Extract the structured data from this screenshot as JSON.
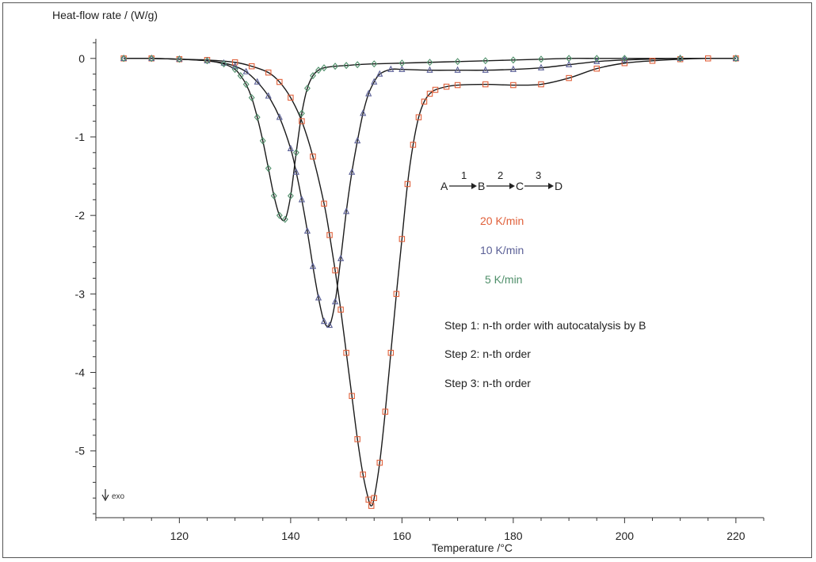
{
  "chart_data": {
    "type": "line",
    "title": "",
    "ylabel": "Heat-flow rate / (W/g)",
    "xlabel": "Temperature /°C",
    "xlim": [
      105,
      225
    ],
    "ylim": [
      -5.85,
      0.25
    ],
    "xticks": [
      120,
      140,
      160,
      180,
      200,
      220
    ],
    "yticks": [
      0,
      -1,
      -2,
      -3,
      -4,
      -5
    ],
    "exo_label": "exo",
    "colors": {
      "20": "#e0603a",
      "10": "#5a5f96",
      "5": "#4f8f6a",
      "fit": "#1a1a1a",
      "axis": "#333333"
    },
    "series": [
      {
        "name": "20 K/min",
        "marker": "square",
        "x": [
          110,
          115,
          120,
          125,
          130,
          133,
          136,
          138,
          140,
          142,
          144,
          146,
          147,
          148,
          149,
          150,
          151,
          152,
          153,
          154,
          154.5,
          155,
          156,
          157,
          158,
          159,
          160,
          161,
          162,
          163,
          164,
          165,
          166,
          168,
          170,
          175,
          180,
          185,
          190,
          195,
          200,
          205,
          210,
          215,
          220
        ],
        "y": [
          0,
          0,
          -0.01,
          -0.02,
          -0.05,
          -0.1,
          -0.18,
          -0.3,
          -0.5,
          -0.8,
          -1.25,
          -1.85,
          -2.25,
          -2.7,
          -3.2,
          -3.75,
          -4.3,
          -4.85,
          -5.3,
          -5.62,
          -5.7,
          -5.6,
          -5.15,
          -4.5,
          -3.75,
          -3.0,
          -2.3,
          -1.6,
          -1.1,
          -0.75,
          -0.55,
          -0.45,
          -0.4,
          -0.36,
          -0.34,
          -0.33,
          -0.34,
          -0.33,
          -0.25,
          -0.13,
          -0.06,
          -0.03,
          -0.01,
          0,
          0
        ]
      },
      {
        "name": "10 K/min",
        "marker": "triangle",
        "x": [
          110,
          115,
          120,
          125,
          128,
          130,
          132,
          134,
          136,
          138,
          140,
          141,
          142,
          143,
          144,
          145,
          146,
          147,
          148,
          149,
          150,
          151,
          152,
          153,
          154,
          155,
          156,
          158,
          160,
          165,
          170,
          175,
          180,
          185,
          190,
          195,
          200,
          210,
          220
        ],
        "y": [
          0,
          0,
          -0.01,
          -0.03,
          -0.06,
          -0.1,
          -0.17,
          -0.3,
          -0.48,
          -0.75,
          -1.15,
          -1.45,
          -1.8,
          -2.2,
          -2.65,
          -3.05,
          -3.35,
          -3.4,
          -3.1,
          -2.55,
          -1.95,
          -1.45,
          -1.05,
          -0.7,
          -0.45,
          -0.3,
          -0.2,
          -0.14,
          -0.14,
          -0.15,
          -0.15,
          -0.15,
          -0.14,
          -0.12,
          -0.08,
          -0.04,
          -0.02,
          0,
          0
        ]
      },
      {
        "name": "5 K/min",
        "marker": "diamond",
        "x": [
          110,
          115,
          120,
          125,
          128,
          130,
          131,
          132,
          133,
          134,
          135,
          136,
          137,
          138,
          139,
          140,
          141,
          142,
          143,
          144,
          145,
          146,
          148,
          150,
          152,
          155,
          160,
          165,
          170,
          175,
          180,
          185,
          190,
          195,
          200,
          210,
          220
        ],
        "y": [
          0,
          0,
          -0.01,
          -0.03,
          -0.07,
          -0.14,
          -0.22,
          -0.33,
          -0.5,
          -0.75,
          -1.05,
          -1.4,
          -1.75,
          -2.0,
          -2.05,
          -1.75,
          -1.2,
          -0.7,
          -0.38,
          -0.22,
          -0.15,
          -0.12,
          -0.1,
          -0.09,
          -0.08,
          -0.07,
          -0.06,
          -0.05,
          -0.04,
          -0.03,
          -0.02,
          -0.01,
          0,
          0,
          0,
          0,
          0
        ]
      }
    ],
    "annotations": {
      "scheme_A": "A",
      "scheme_B": "B",
      "scheme_C": "C",
      "scheme_D": "D",
      "step1_num": "1",
      "step2_num": "2",
      "step3_num": "3",
      "legend_20": "20 K/min",
      "legend_10": "10 K/min",
      "legend_5": "5 K/min",
      "step1_text": "Step 1: n-th order with autocatalysis by B",
      "step2_text": "Step 2: n-th order",
      "step3_text": "Step 3: n-th order"
    }
  }
}
